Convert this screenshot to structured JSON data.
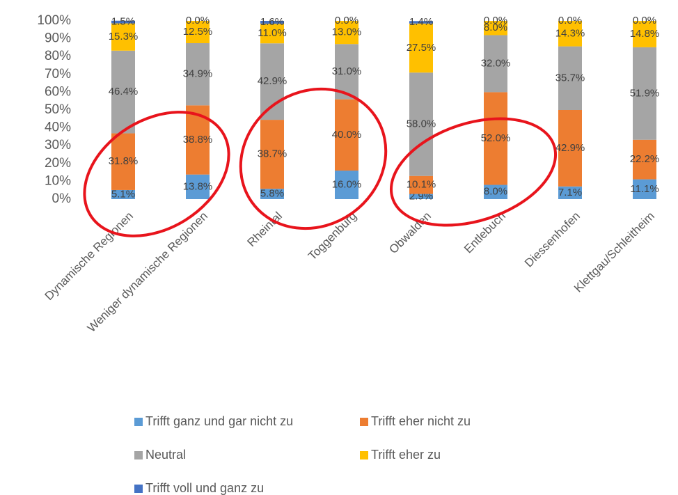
{
  "chart_data": {
    "type": "stacked_bar",
    "categories": [
      "Dynamische Regionen",
      "Weniger dynamische Regionen",
      "Rheintal",
      "Toggenburg",
      "Obwalden",
      "Entlebuch",
      "Diessenhofen",
      "Klettgau/Schleitheim"
    ],
    "series": [
      {
        "name": "Trifft ganz und gar nicht zu",
        "color": "#5b9bd5",
        "values": [
          5.1,
          13.8,
          5.8,
          16.0,
          2.9,
          8.0,
          7.1,
          11.1
        ],
        "value_labels": [
          "5.1%",
          "13.8%",
          "5.8%",
          "16.0%",
          "2.9%",
          "8.0%",
          "7.1%",
          "11.1%"
        ]
      },
      {
        "name": "Trifft eher nicht zu",
        "color": "#ed7d31",
        "values": [
          31.8,
          38.8,
          38.7,
          40.0,
          10.1,
          52.0,
          42.9,
          22.2
        ],
        "value_labels": [
          "31.8%",
          "38.8%",
          "38.7%",
          "40.0%",
          "10.1%",
          "52.0%",
          "42.9%",
          "22.2%"
        ]
      },
      {
        "name": "Neutral",
        "color": "#a5a5a5",
        "values": [
          46.4,
          34.9,
          42.9,
          31.0,
          58.0,
          32.0,
          35.7,
          51.9
        ],
        "value_labels": [
          "46.4%",
          "34.9%",
          "42.9%",
          "31.0%",
          "58.0%",
          "32.0%",
          "35.7%",
          "51.9%"
        ]
      },
      {
        "name": "Trifft eher zu",
        "color": "#ffc000",
        "values": [
          15.3,
          12.5,
          11.0,
          13.0,
          27.5,
          8.0,
          14.3,
          14.8
        ],
        "value_labels": [
          "15.3%",
          "12.5%",
          "11.0%",
          "13.0%",
          "27.5%",
          "8.0%",
          "14.3%",
          "14.8%"
        ]
      },
      {
        "name": "Trifft voll und ganz zu",
        "color": "#4472c4",
        "values": [
          1.5,
          0.0,
          1.6,
          0.0,
          1.4,
          0.0,
          0.0,
          0.0
        ],
        "value_labels": [
          "1.5%",
          "0.0%",
          "1.6%",
          "0.0%",
          "1.4%",
          "0.0%",
          "0.0%",
          "0.0%"
        ]
      }
    ],
    "ylim": [
      0,
      100
    ],
    "yticks": [
      {
        "value": 0,
        "label": "0%"
      },
      {
        "value": 10,
        "label": "10%"
      },
      {
        "value": 20,
        "label": "20%"
      },
      {
        "value": 30,
        "label": "30%"
      },
      {
        "value": 40,
        "label": "40%"
      },
      {
        "value": 50,
        "label": "50%"
      },
      {
        "value": 60,
        "label": "60%"
      },
      {
        "value": 70,
        "label": "70%"
      },
      {
        "value": 80,
        "label": "80%"
      },
      {
        "value": 90,
        "label": "90%"
      },
      {
        "value": 100,
        "label": "100%"
      }
    ],
    "grid": false,
    "legend": "bottom"
  }
}
